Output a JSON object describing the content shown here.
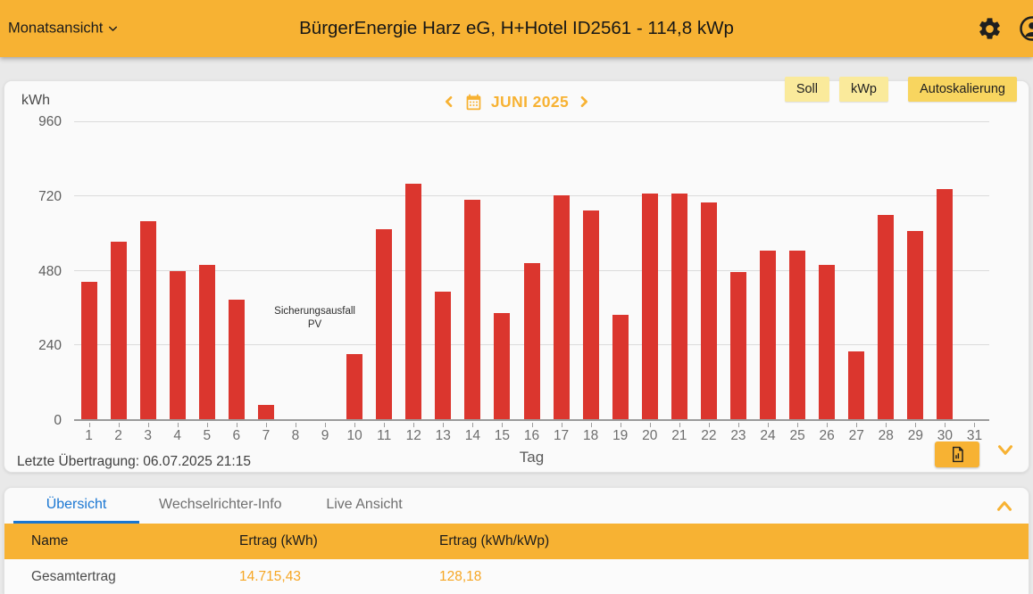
{
  "header": {
    "view_selector": "Monatsansicht",
    "title": "BürgerEnergie Harz eG, H+Hotel ID2561 - 114,8 kWp"
  },
  "chart": {
    "unit_label": "kWh",
    "month_label": "JUNI 2025",
    "buttons": {
      "soll": "Soll",
      "kwp": "kWp",
      "autoscale": "Autoskalierung"
    },
    "annotation_line1": "Sicherungsausfall",
    "annotation_line2": "PV",
    "x_axis_title": "Tag",
    "last_transmission": "Letzte Übertragung: 06.07.2025 21:15"
  },
  "chart_data": {
    "type": "bar",
    "title": "JUNI 2025",
    "xlabel": "Tag",
    "ylabel": "kWh",
    "ylim": [
      0,
      960
    ],
    "yticks": [
      0,
      240,
      480,
      720,
      960
    ],
    "grid": true,
    "categories": [
      1,
      2,
      3,
      4,
      5,
      6,
      7,
      8,
      9,
      10,
      11,
      12,
      13,
      14,
      15,
      16,
      17,
      18,
      19,
      20,
      21,
      22,
      23,
      24,
      25,
      26,
      27,
      28,
      29,
      30,
      31
    ],
    "values": [
      445,
      575,
      640,
      478,
      500,
      385,
      45,
      0,
      0,
      210,
      615,
      760,
      412,
      710,
      343,
      505,
      725,
      675,
      338,
      730,
      728,
      700,
      475,
      545,
      545,
      498,
      220,
      660,
      607,
      745,
      0
    ],
    "bar_color": "#DB362E",
    "annotations": [
      {
        "text": "Sicherungsausfall PV",
        "between_days": [
          8,
          9
        ]
      }
    ]
  },
  "tabs": [
    {
      "label": "Übersicht",
      "active": true
    },
    {
      "label": "Wechselrichter-Info",
      "active": false
    },
    {
      "label": "Live Ansicht",
      "active": false
    }
  ],
  "table": {
    "headers": [
      "Name",
      "Ertrag (kWh)",
      "Ertrag (kWh/kWp)"
    ],
    "rows": [
      {
        "name": "Gesamtertrag",
        "ertrag_kwh": "14.715,43",
        "ertrag_kwh_kwp": "128,18"
      }
    ]
  },
  "colors": {
    "header_bg": "#F7B233",
    "accent_amber": "#F7B233",
    "bar_red": "#DB362E",
    "active_tab_blue": "#1976D2",
    "chip_yellow": "#FAEA9B",
    "autoscale_chip_yellow": "#F8D55F",
    "value_text_amber": "#F6A623"
  }
}
